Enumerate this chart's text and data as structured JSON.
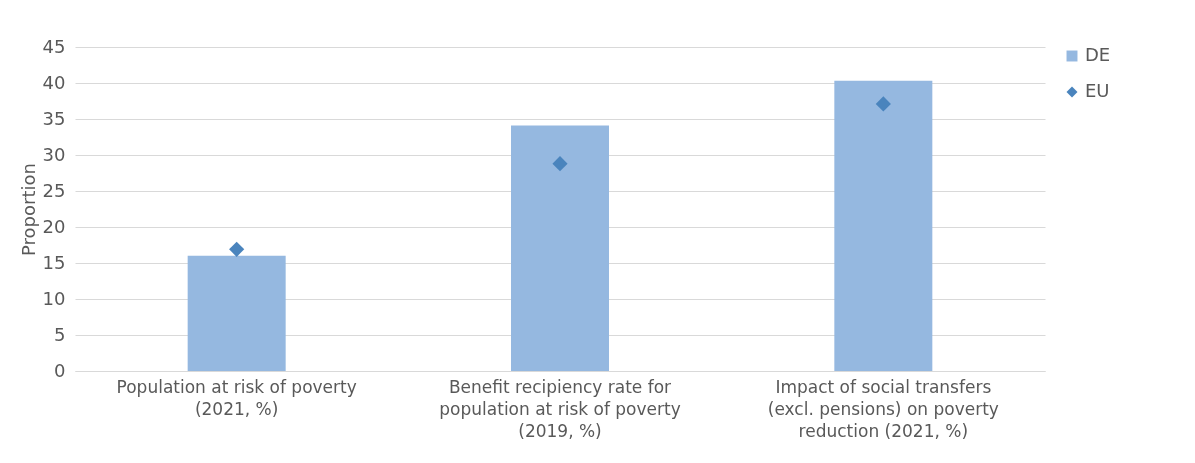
{
  "chart_data": {
    "type": "bar",
    "ylabel": "Proportion",
    "categories": [
      "Population at risk of poverty (2021, %)",
      "Benefit recipiency rate for population at risk of poverty (2019, %)",
      "Impact of social transfers (excl. pensions) on poverty reduction (2021, %)"
    ],
    "series": [
      {
        "name": "DE",
        "color": "#95b8e0",
        "values": [
          16.0,
          34.1,
          40.3
        ]
      },
      {
        "name": "EU",
        "type": "scatter",
        "color": "#4a84bd",
        "values": [
          16.9,
          28.8,
          37.1
        ]
      }
    ],
    "ylim": [
      0,
      45
    ],
    "yticks": [
      0,
      5,
      10,
      15,
      20,
      25,
      30,
      35,
      40,
      45
    ],
    "grid": "y",
    "legend": "right",
    "marker": "diamond"
  }
}
